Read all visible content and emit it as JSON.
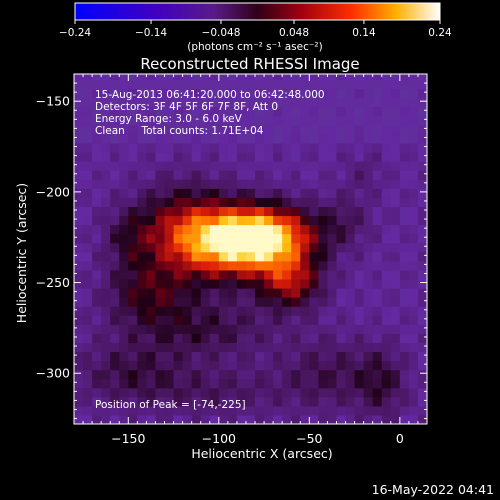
{
  "colorbar": {
    "tick_labels": [
      "−0.24",
      "−0.14",
      "−0.048",
      "0.048",
      "0.14",
      "0.24"
    ],
    "tick_values": [
      -0.24,
      -0.14,
      -0.048,
      0.048,
      0.14,
      0.24
    ],
    "range": [
      -0.24,
      0.24
    ],
    "units": "(photons cm⁻² s⁻¹ asec⁻²)"
  },
  "chart_data": {
    "type": "heatmap",
    "title": "Reconstructed RHESSI Image",
    "xlabel": "Heliocentric X (arcsec)",
    "ylabel": "Heliocentric Y (arcsec)",
    "xlim": [
      -180,
      15
    ],
    "ylim": [
      -328,
      -135
    ],
    "x_ticks": [
      -150,
      -100,
      -50,
      0
    ],
    "x_tick_labels": [
      "−150",
      "−100",
      "−50",
      "0"
    ],
    "y_ticks": [
      -150,
      -200,
      -250,
      -300
    ],
    "y_tick_labels": [
      "−150",
      "−200",
      "−250",
      "−300"
    ],
    "colormap": [
      "#0000ff",
      "#3a1090",
      "#5a1a8a",
      "#800020",
      "#d01000",
      "#ff6000",
      "#ffd000",
      "#ffffff"
    ],
    "peak": {
      "x": -74,
      "y": -225
    },
    "annotations": [
      "15-Aug-2013 06:41:20.000 to 06:42:48.000",
      "Detectors: 3F 4F 5F 6F 7F 8F, Att 0",
      "Energy Range: 3.0 - 6.0 keV",
      "Clean     Total counts: 1.71E+04"
    ],
    "peak_label": "Position of Peak = [-74,-225]"
  },
  "footer": {
    "timestamp": "16-May-2022 04:41"
  }
}
